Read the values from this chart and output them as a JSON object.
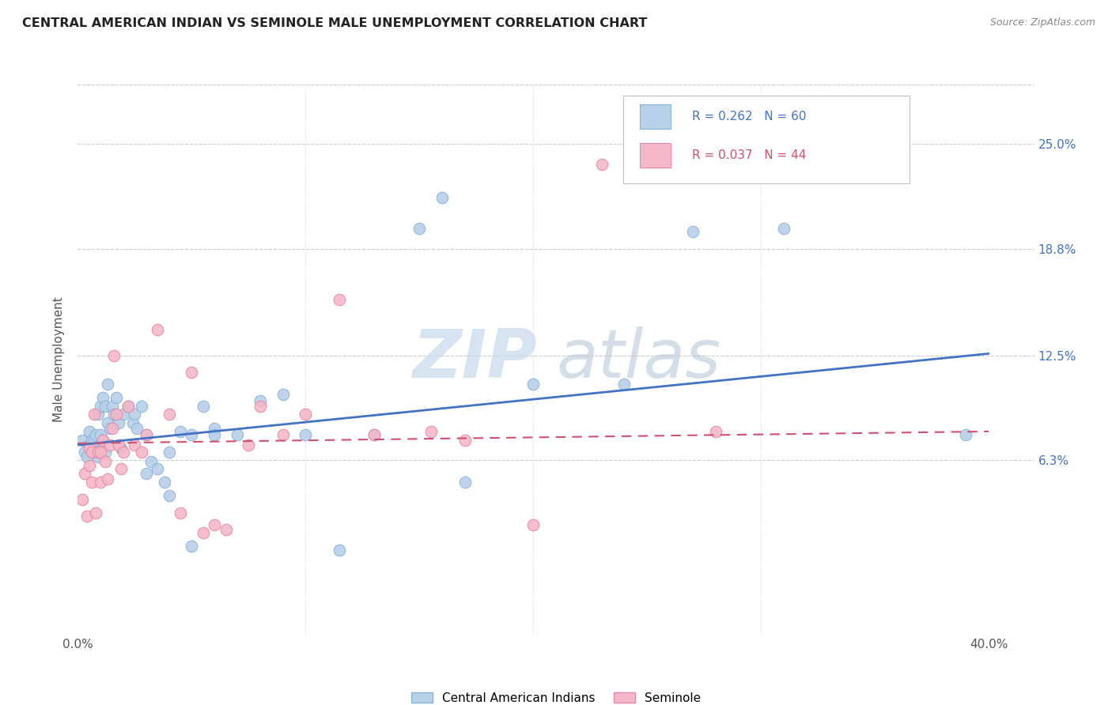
{
  "title": "CENTRAL AMERICAN INDIAN VS SEMINOLE MALE UNEMPLOYMENT CORRELATION CHART",
  "source": "Source: ZipAtlas.com",
  "ylabel": "Male Unemployment",
  "xlim": [
    0.0,
    0.42
  ],
  "ylim": [
    -0.04,
    0.285
  ],
  "yticks": [
    0.063,
    0.125,
    0.188,
    0.25
  ],
  "ytick_labels": [
    "6.3%",
    "12.5%",
    "18.8%",
    "25.0%"
  ],
  "xticks": [
    0.0,
    0.4
  ],
  "xtick_labels": [
    "0.0%",
    "40.0%"
  ],
  "xtick_minor": [
    0.1,
    0.2,
    0.3
  ],
  "blue_color": "#b8d0e8",
  "blue_edge": "#8ab4d8",
  "pink_color": "#f4b8c8",
  "pink_edge": "#e888a4",
  "trend_blue": "#4472c4",
  "trend_pink": "#d05070",
  "legend_r_blue": "R = 0.262",
  "legend_n_blue": "N = 60",
  "legend_r_pink": "R = 0.037",
  "legend_n_pink": "N = 44",
  "label_blue": "Central American Indians",
  "label_pink": "Seminole",
  "watermark_zip": "ZIP",
  "watermark_atlas": "atlas",
  "blue_trend_start": 0.072,
  "blue_trend_end": 0.126,
  "pink_trend_start": 0.073,
  "pink_trend_end": 0.08,
  "blue_x": [
    0.002,
    0.003,
    0.004,
    0.005,
    0.005,
    0.006,
    0.006,
    0.007,
    0.007,
    0.008,
    0.008,
    0.009,
    0.009,
    0.01,
    0.01,
    0.011,
    0.011,
    0.012,
    0.012,
    0.013,
    0.013,
    0.014,
    0.015,
    0.016,
    0.017,
    0.018,
    0.019,
    0.02,
    0.022,
    0.024,
    0.025,
    0.026,
    0.028,
    0.03,
    0.032,
    0.035,
    0.038,
    0.04,
    0.045,
    0.05,
    0.055,
    0.06,
    0.07,
    0.08,
    0.09,
    0.1,
    0.115,
    0.13,
    0.15,
    0.16,
    0.17,
    0.2,
    0.24,
    0.27,
    0.31,
    0.39,
    0.03,
    0.04,
    0.05,
    0.06
  ],
  "blue_y": [
    0.075,
    0.068,
    0.065,
    0.072,
    0.08,
    0.068,
    0.075,
    0.07,
    0.075,
    0.068,
    0.078,
    0.065,
    0.09,
    0.078,
    0.095,
    0.075,
    0.1,
    0.095,
    0.068,
    0.085,
    0.108,
    0.082,
    0.095,
    0.09,
    0.1,
    0.085,
    0.07,
    0.09,
    0.095,
    0.085,
    0.09,
    0.082,
    0.095,
    0.078,
    0.062,
    0.058,
    0.05,
    0.068,
    0.08,
    0.078,
    0.095,
    0.082,
    0.078,
    0.098,
    0.102,
    0.078,
    0.01,
    0.078,
    0.2,
    0.218,
    0.05,
    0.108,
    0.108,
    0.198,
    0.2,
    0.078,
    0.055,
    0.042,
    0.012,
    0.078
  ],
  "pink_x": [
    0.002,
    0.003,
    0.004,
    0.005,
    0.005,
    0.006,
    0.006,
    0.007,
    0.008,
    0.009,
    0.01,
    0.01,
    0.011,
    0.012,
    0.013,
    0.014,
    0.015,
    0.016,
    0.017,
    0.018,
    0.019,
    0.02,
    0.022,
    0.025,
    0.028,
    0.03,
    0.035,
    0.04,
    0.045,
    0.055,
    0.06,
    0.065,
    0.075,
    0.08,
    0.09,
    0.1,
    0.115,
    0.13,
    0.155,
    0.17,
    0.2,
    0.23,
    0.28,
    0.05
  ],
  "pink_y": [
    0.04,
    0.055,
    0.03,
    0.06,
    0.07,
    0.05,
    0.068,
    0.09,
    0.032,
    0.068,
    0.05,
    0.068,
    0.075,
    0.062,
    0.052,
    0.072,
    0.082,
    0.125,
    0.09,
    0.072,
    0.058,
    0.068,
    0.095,
    0.072,
    0.068,
    0.078,
    0.14,
    0.09,
    0.032,
    0.02,
    0.025,
    0.022,
    0.072,
    0.095,
    0.078,
    0.09,
    0.158,
    0.078,
    0.08,
    0.075,
    0.025,
    0.238,
    0.08,
    0.115
  ]
}
